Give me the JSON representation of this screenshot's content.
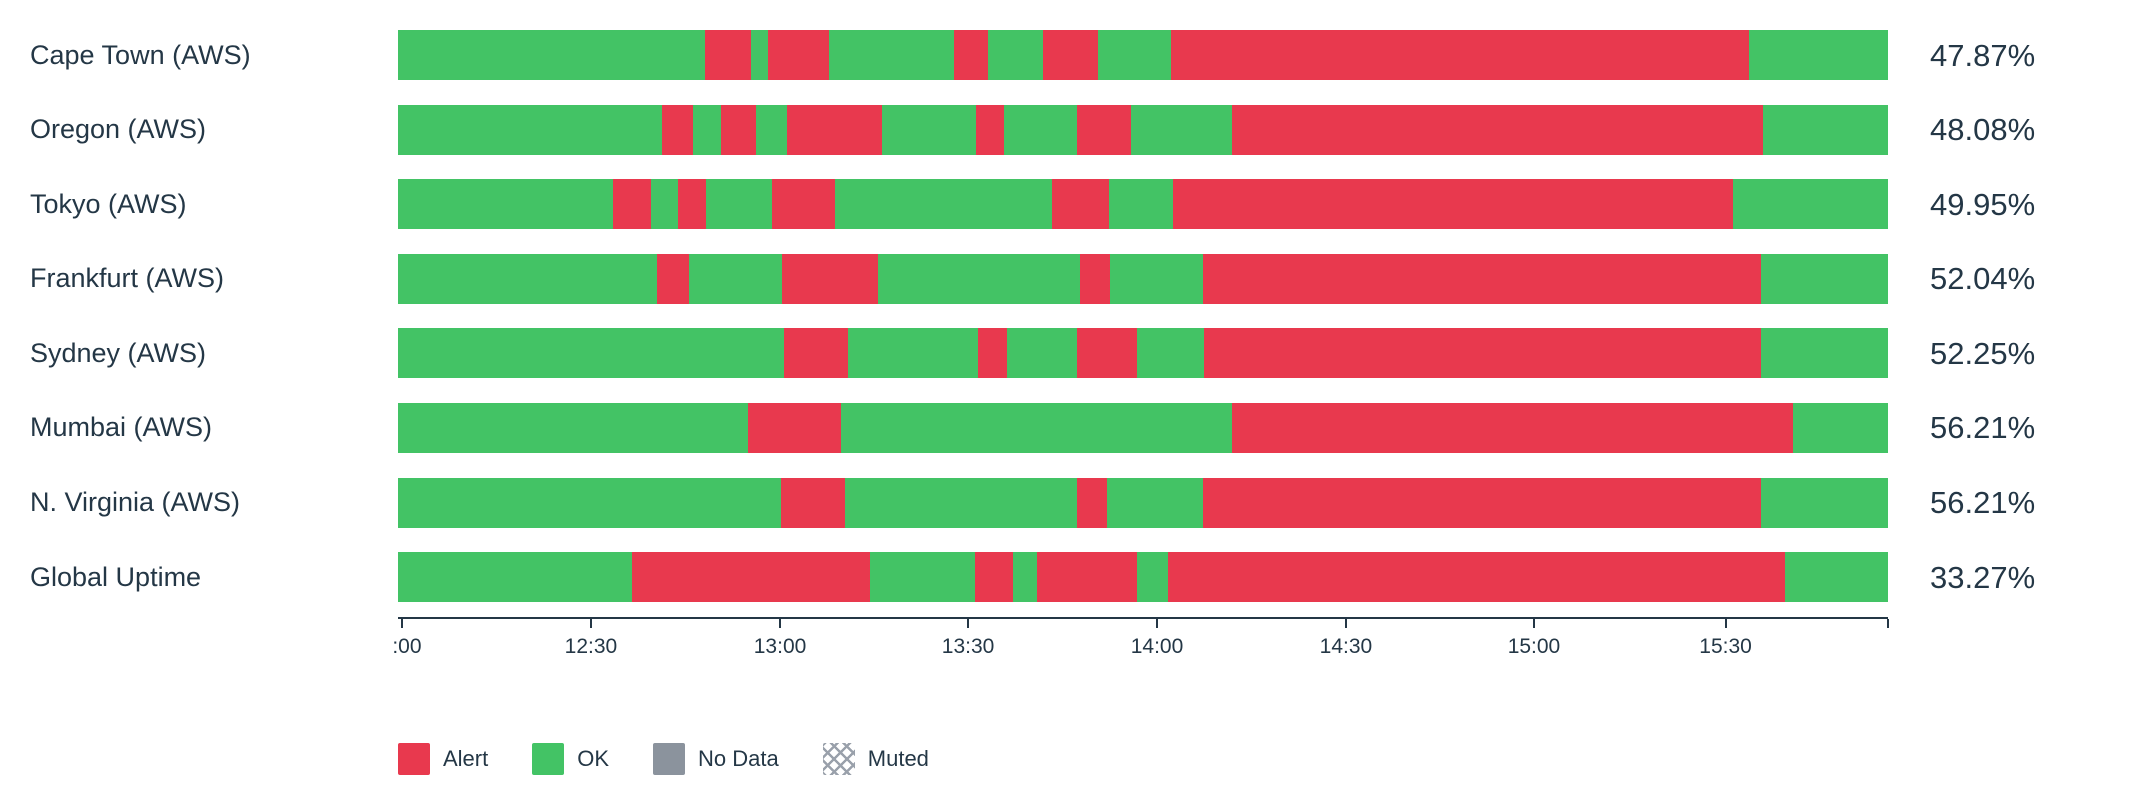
{
  "chart_data": {
    "type": "status_timeline",
    "orientation": "horizontal",
    "title": "",
    "colors": {
      "alert": "#e8394e",
      "ok": "#43c365",
      "nodata": "#8b939d",
      "muted_pattern": "#9aa1ab",
      "text": "#243746",
      "background": "#ffffff"
    },
    "x_axis": {
      "range_start": "12:00",
      "range_end": "16:00",
      "ticks": [
        {
          "label": ":00",
          "pct": 0.3,
          "label_pct": 0.6
        },
        {
          "label": "12:30",
          "pct": 12.95
        },
        {
          "label": "13:00",
          "pct": 25.64
        },
        {
          "label": "13:30",
          "pct": 38.26
        },
        {
          "label": "14:00",
          "pct": 50.94
        },
        {
          "label": "14:30",
          "pct": 63.62
        },
        {
          "label": "15:00",
          "pct": 76.24
        },
        {
          "label": "15:30",
          "pct": 89.1
        },
        {
          "label": "",
          "pct": 100
        }
      ]
    },
    "rows": [
      {
        "label": "Cape Town (AWS)",
        "value": "47.87%",
        "segments": [
          {
            "status": "ok",
            "pct": 20.6
          },
          {
            "status": "alert",
            "pct": 3.1
          },
          {
            "status": "ok",
            "pct": 1.1
          },
          {
            "status": "alert",
            "pct": 4.1
          },
          {
            "status": "ok",
            "pct": 8.4
          },
          {
            "status": "alert",
            "pct": 2.3
          },
          {
            "status": "ok",
            "pct": 3.7
          },
          {
            "status": "alert",
            "pct": 3.7
          },
          {
            "status": "ok",
            "pct": 4.9
          },
          {
            "status": "alert",
            "pct": 38.8
          },
          {
            "status": "ok",
            "pct": 9.3
          }
        ]
      },
      {
        "label": "Oregon (AWS)",
        "value": "48.08%",
        "segments": [
          {
            "status": "ok",
            "pct": 17.7
          },
          {
            "status": "alert",
            "pct": 2.1
          },
          {
            "status": "ok",
            "pct": 1.9
          },
          {
            "status": "alert",
            "pct": 2.3
          },
          {
            "status": "ok",
            "pct": 2.1
          },
          {
            "status": "alert",
            "pct": 6.4
          },
          {
            "status": "ok",
            "pct": 6.3
          },
          {
            "status": "alert",
            "pct": 1.9
          },
          {
            "status": "ok",
            "pct": 4.9
          },
          {
            "status": "alert",
            "pct": 3.6
          },
          {
            "status": "ok",
            "pct": 6.8
          },
          {
            "status": "alert",
            "pct": 35.6
          },
          {
            "status": "ok",
            "pct": 8.4
          }
        ]
      },
      {
        "label": "Tokyo (AWS)",
        "value": "49.95%",
        "segments": [
          {
            "status": "ok",
            "pct": 14.4
          },
          {
            "status": "alert",
            "pct": 2.6
          },
          {
            "status": "ok",
            "pct": 1.8
          },
          {
            "status": "alert",
            "pct": 1.9
          },
          {
            "status": "ok",
            "pct": 4.4
          },
          {
            "status": "alert",
            "pct": 4.2
          },
          {
            "status": "ok",
            "pct": 14.6
          },
          {
            "status": "alert",
            "pct": 3.8
          },
          {
            "status": "ok",
            "pct": 4.3
          },
          {
            "status": "alert",
            "pct": 37.6
          },
          {
            "status": "ok",
            "pct": 10.4
          }
        ]
      },
      {
        "label": "Frankfurt (AWS)",
        "value": "52.04%",
        "segments": [
          {
            "status": "ok",
            "pct": 17.4
          },
          {
            "status": "alert",
            "pct": 2.1
          },
          {
            "status": "ok",
            "pct": 6.3
          },
          {
            "status": "alert",
            "pct": 6.4
          },
          {
            "status": "ok",
            "pct": 13.6
          },
          {
            "status": "alert",
            "pct": 2.0
          },
          {
            "status": "ok",
            "pct": 6.2
          },
          {
            "status": "alert",
            "pct": 37.5
          },
          {
            "status": "ok",
            "pct": 8.5
          }
        ]
      },
      {
        "label": "Sydney (AWS)",
        "value": "52.25%",
        "segments": [
          {
            "status": "ok",
            "pct": 25.9
          },
          {
            "status": "alert",
            "pct": 4.3
          },
          {
            "status": "ok",
            "pct": 8.7
          },
          {
            "status": "alert",
            "pct": 2.0
          },
          {
            "status": "ok",
            "pct": 4.7
          },
          {
            "status": "alert",
            "pct": 4.0
          },
          {
            "status": "ok",
            "pct": 4.5
          },
          {
            "status": "alert",
            "pct": 37.4
          },
          {
            "status": "ok",
            "pct": 8.5
          }
        ]
      },
      {
        "label": "Mumbai (AWS)",
        "value": "56.21%",
        "segments": [
          {
            "status": "ok",
            "pct": 23.5
          },
          {
            "status": "alert",
            "pct": 6.2
          },
          {
            "status": "ok",
            "pct": 26.3
          },
          {
            "status": "alert",
            "pct": 37.6
          },
          {
            "status": "ok",
            "pct": 6.4
          }
        ]
      },
      {
        "label": "N. Virginia (AWS)",
        "value": "56.21%",
        "segments": [
          {
            "status": "ok",
            "pct": 25.7
          },
          {
            "status": "alert",
            "pct": 4.3
          },
          {
            "status": "ok",
            "pct": 15.6
          },
          {
            "status": "alert",
            "pct": 2.0
          },
          {
            "status": "ok",
            "pct": 6.4
          },
          {
            "status": "alert",
            "pct": 37.5
          },
          {
            "status": "ok",
            "pct": 8.5
          }
        ]
      },
      {
        "label": "Global Uptime",
        "value": "33.27%",
        "segments": [
          {
            "status": "ok",
            "pct": 15.7
          },
          {
            "status": "alert",
            "pct": 16.0
          },
          {
            "status": "ok",
            "pct": 7.0
          },
          {
            "status": "alert",
            "pct": 2.6
          },
          {
            "status": "ok",
            "pct": 1.6
          },
          {
            "status": "alert",
            "pct": 6.7
          },
          {
            "status": "ok",
            "pct": 2.1
          },
          {
            "status": "alert",
            "pct": 41.4
          },
          {
            "status": "ok",
            "pct": 6.9
          }
        ]
      }
    ],
    "legend": [
      {
        "label": "Alert",
        "swatch": "alert"
      },
      {
        "label": "OK",
        "swatch": "ok"
      },
      {
        "label": "No Data",
        "swatch": "nodata"
      },
      {
        "label": "Muted",
        "swatch": "muted"
      }
    ]
  }
}
